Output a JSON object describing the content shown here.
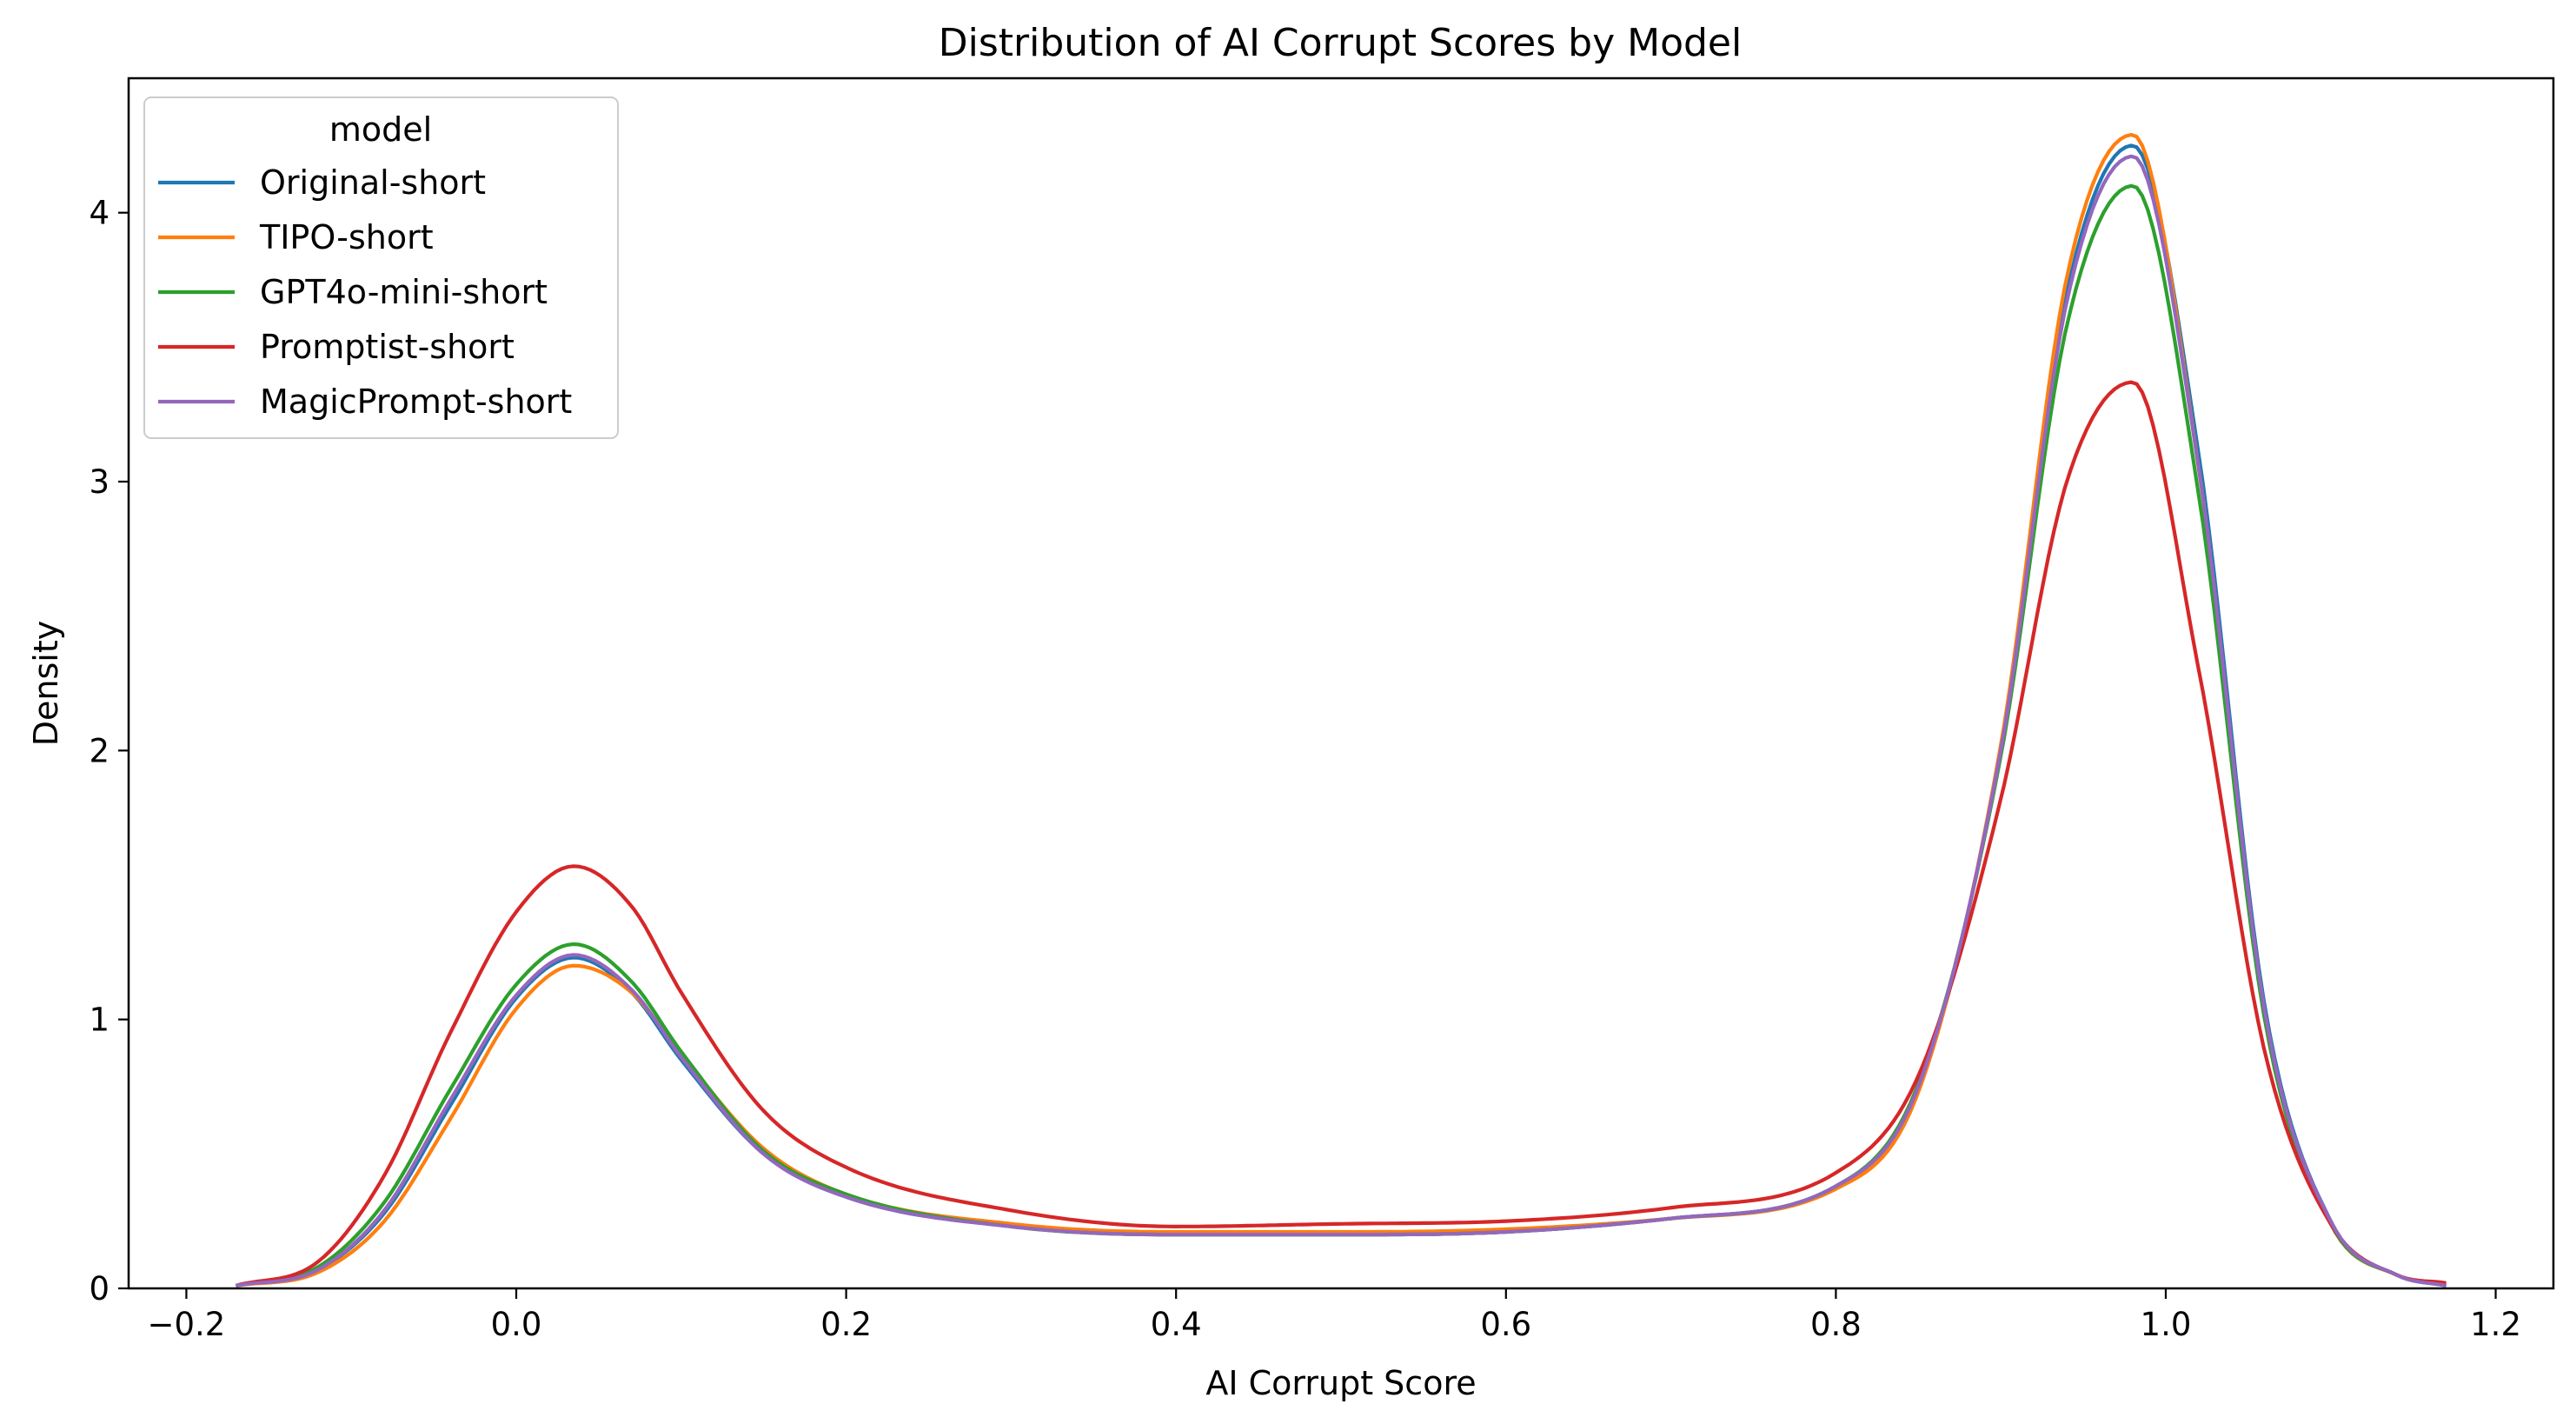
{
  "chart_data": {
    "type": "line",
    "title": "Distribution of AI Corrupt Scores by Model",
    "xlabel": "AI Corrupt Score",
    "ylabel": "Density",
    "xlim": [
      -0.235,
      1.235
    ],
    "ylim": [
      0,
      4.5
    ],
    "x_ticks": [
      -0.2,
      0.0,
      0.2,
      0.4,
      0.6,
      0.8,
      1.0,
      1.2
    ],
    "x_tick_labels": [
      "−0.2",
      "0.0",
      "0.2",
      "0.4",
      "0.6",
      "0.8",
      "1.0",
      "1.2"
    ],
    "y_ticks": [
      0,
      1,
      2,
      3,
      4
    ],
    "y_tick_labels": [
      "0",
      "1",
      "2",
      "3",
      "4"
    ],
    "grid": false,
    "legend": {
      "title": "model",
      "placement": "top-left"
    },
    "x": [
      -0.17,
      -0.12,
      -0.08,
      -0.04,
      0.0,
      0.035,
      0.07,
      0.1,
      0.15,
      0.2,
      0.3,
      0.4,
      0.5,
      0.6,
      0.7,
      0.8,
      0.85,
      0.9,
      0.94,
      0.98,
      1.02,
      1.06,
      1.1,
      1.14,
      1.17
    ],
    "series": [
      {
        "name": "Original-short",
        "color": "#1f77b4",
        "values": [
          0.01,
          0.07,
          0.28,
          0.68,
          1.08,
          1.23,
          1.1,
          0.85,
          0.5,
          0.34,
          0.23,
          0.2,
          0.2,
          0.21,
          0.26,
          0.38,
          0.75,
          2.0,
          3.7,
          4.25,
          3.1,
          1.05,
          0.25,
          0.05,
          0.01
        ]
      },
      {
        "name": "TIPO-short",
        "color": "#ff7f0e",
        "values": [
          0.01,
          0.06,
          0.25,
          0.63,
          1.04,
          1.2,
          1.1,
          0.87,
          0.52,
          0.35,
          0.24,
          0.21,
          0.21,
          0.22,
          0.26,
          0.37,
          0.73,
          2.02,
          3.76,
          4.29,
          3.05,
          1.02,
          0.24,
          0.05,
          0.01
        ]
      },
      {
        "name": "GPT4o-mini-short",
        "color": "#2ca02c",
        "values": [
          0.01,
          0.08,
          0.32,
          0.74,
          1.13,
          1.28,
          1.14,
          0.88,
          0.51,
          0.35,
          0.23,
          0.2,
          0.2,
          0.21,
          0.26,
          0.38,
          0.76,
          1.98,
          3.58,
          4.1,
          2.95,
          1.0,
          0.24,
          0.05,
          0.01
        ]
      },
      {
        "name": "Promptist-short",
        "color": "#d62728",
        "values": [
          0.01,
          0.1,
          0.42,
          0.95,
          1.4,
          1.57,
          1.42,
          1.1,
          0.66,
          0.45,
          0.29,
          0.23,
          0.24,
          0.25,
          0.3,
          0.43,
          0.79,
          1.82,
          3.0,
          3.37,
          2.3,
          0.88,
          0.24,
          0.05,
          0.02
        ]
      },
      {
        "name": "MagicPrompt-short",
        "color": "#9467bd",
        "values": [
          0.01,
          0.07,
          0.29,
          0.7,
          1.09,
          1.24,
          1.11,
          0.86,
          0.5,
          0.34,
          0.23,
          0.2,
          0.2,
          0.21,
          0.26,
          0.38,
          0.75,
          2.0,
          3.67,
          4.21,
          3.05,
          1.03,
          0.25,
          0.05,
          0.01
        ]
      }
    ]
  }
}
